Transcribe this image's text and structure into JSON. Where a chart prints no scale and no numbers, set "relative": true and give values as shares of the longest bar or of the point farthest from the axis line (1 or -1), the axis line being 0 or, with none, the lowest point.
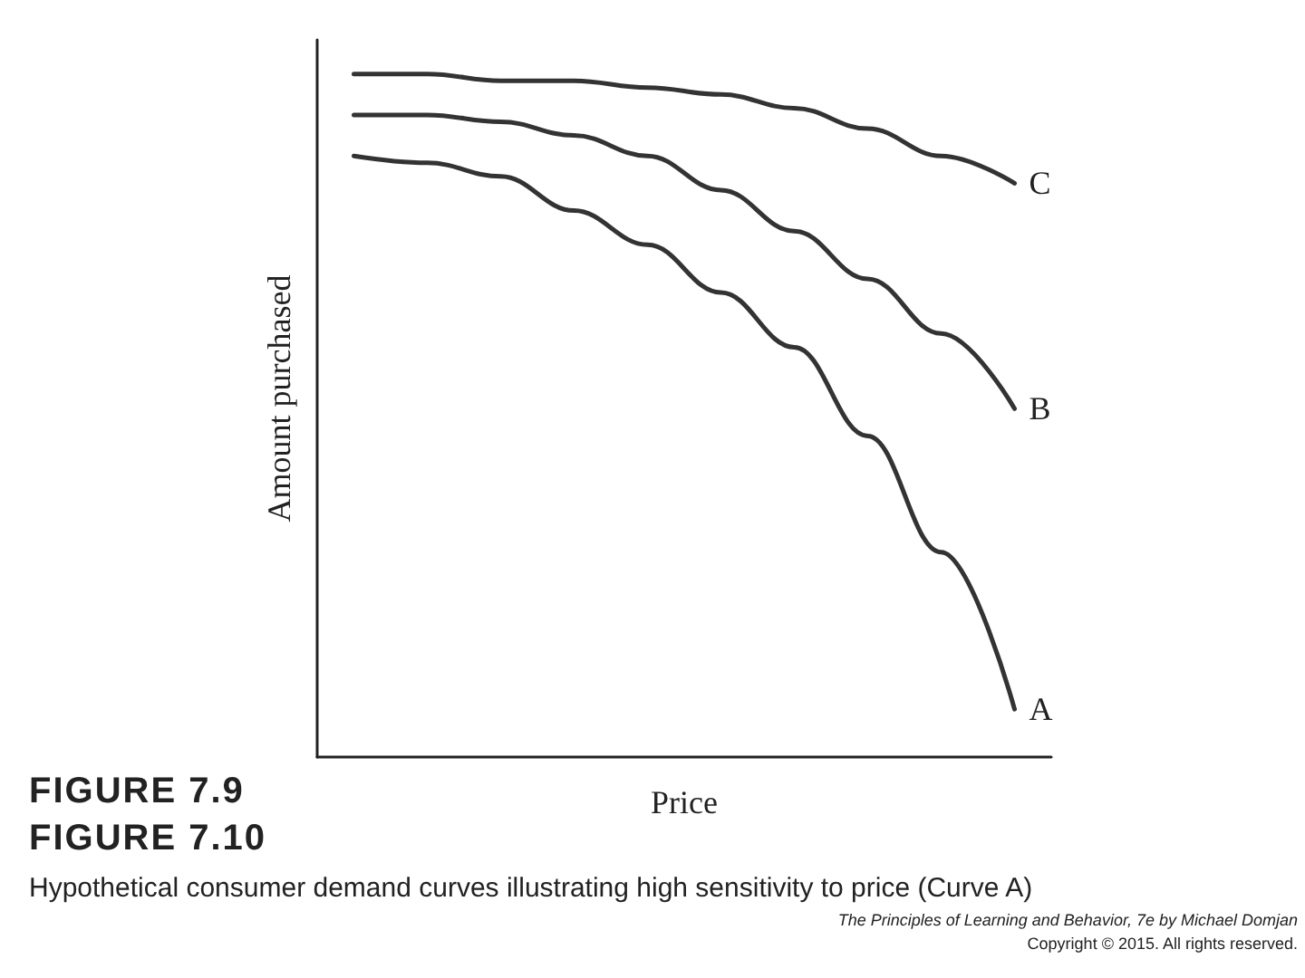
{
  "chart_data": {
    "type": "line",
    "relative": true,
    "xlabel": "Price",
    "ylabel": "Amount purchased",
    "categories": [
      null,
      null,
      null,
      null,
      null,
      null,
      null,
      null,
      null,
      null
    ],
    "series": [
      {
        "name": "A",
        "color": "#333333",
        "values": [
          0.88,
          0.87,
          0.85,
          0.8,
          0.75,
          0.68,
          0.6,
          0.47,
          0.3,
          0.07
        ]
      },
      {
        "name": "B",
        "color": "#333333",
        "values": [
          0.94,
          0.94,
          0.93,
          0.91,
          0.88,
          0.83,
          0.77,
          0.7,
          0.62,
          0.51
        ]
      },
      {
        "name": "C",
        "color": "#333333",
        "values": [
          1.0,
          1.0,
          0.99,
          0.99,
          0.98,
          0.97,
          0.95,
          0.92,
          0.88,
          0.84
        ]
      }
    ],
    "marker": "none",
    "line_style": "solid",
    "grid": false,
    "legend": false,
    "annotations": [
      "FIGURE 7.9",
      "FIGURE 7.10",
      "Hypothetical consumer demand curves illustrating high sensitivity to price (Curve A)",
      "The Principles of Learning and Behavior, 7e by Michael Domjan",
      "Copyright © 2015. All rights reserved."
    ]
  }
}
